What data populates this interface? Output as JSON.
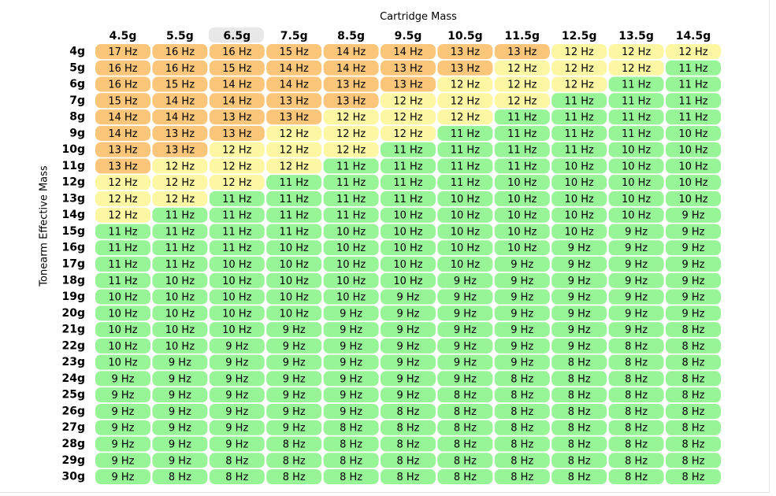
{
  "chart_data": {
    "type": "heatmap",
    "title": "Cartridge Mass",
    "xlabel": "Cartridge Mass",
    "ylabel": "Tonearm Effective Mass",
    "highlighted_column": "6.5g",
    "x": [
      "4.5g",
      "5.5g",
      "6.5g",
      "7.5g",
      "8.5g",
      "9.5g",
      "10.5g",
      "11.5g",
      "12.5g",
      "13.5g",
      "14.5g"
    ],
    "y": [
      "4g",
      "5g",
      "6g",
      "7g",
      "8g",
      "9g",
      "10g",
      "11g",
      "12g",
      "13g",
      "14g",
      "15g",
      "16g",
      "17g",
      "18g",
      "19g",
      "20g",
      "21g",
      "22g",
      "23g",
      "24g",
      "25g",
      "26g",
      "27g",
      "28g",
      "29g",
      "30g"
    ],
    "unit": "Hz",
    "values": [
      [
        17,
        16,
        16,
        15,
        14,
        14,
        13,
        13,
        12,
        12,
        12
      ],
      [
        16,
        16,
        15,
        14,
        14,
        13,
        13,
        12,
        12,
        12,
        11
      ],
      [
        16,
        15,
        14,
        14,
        13,
        13,
        12,
        12,
        12,
        11,
        11
      ],
      [
        15,
        14,
        14,
        13,
        13,
        12,
        12,
        12,
        11,
        11,
        11
      ],
      [
        14,
        14,
        13,
        13,
        12,
        12,
        12,
        11,
        11,
        11,
        11
      ],
      [
        14,
        13,
        13,
        12,
        12,
        12,
        11,
        11,
        11,
        11,
        10
      ],
      [
        13,
        13,
        12,
        12,
        12,
        11,
        11,
        11,
        11,
        10,
        10
      ],
      [
        13,
        12,
        12,
        12,
        11,
        11,
        11,
        11,
        10,
        10,
        10
      ],
      [
        12,
        12,
        12,
        11,
        11,
        11,
        11,
        10,
        10,
        10,
        10
      ],
      [
        12,
        12,
        11,
        11,
        11,
        11,
        10,
        10,
        10,
        10,
        10
      ],
      [
        12,
        11,
        11,
        11,
        11,
        10,
        10,
        10,
        10,
        10,
        9
      ],
      [
        11,
        11,
        11,
        11,
        10,
        10,
        10,
        10,
        10,
        9,
        9
      ],
      [
        11,
        11,
        11,
        10,
        10,
        10,
        10,
        10,
        9,
        9,
        9
      ],
      [
        11,
        11,
        10,
        10,
        10,
        10,
        10,
        9,
        9,
        9,
        9
      ],
      [
        11,
        10,
        10,
        10,
        10,
        10,
        9,
        9,
        9,
        9,
        9
      ],
      [
        10,
        10,
        10,
        10,
        10,
        9,
        9,
        9,
        9,
        9,
        9
      ],
      [
        10,
        10,
        10,
        10,
        9,
        9,
        9,
        9,
        9,
        9,
        9
      ],
      [
        10,
        10,
        10,
        9,
        9,
        9,
        9,
        9,
        9,
        9,
        8
      ],
      [
        10,
        10,
        9,
        9,
        9,
        9,
        9,
        9,
        9,
        8,
        8
      ],
      [
        10,
        9,
        9,
        9,
        9,
        9,
        9,
        9,
        8,
        8,
        8
      ],
      [
        9,
        9,
        9,
        9,
        9,
        9,
        9,
        8,
        8,
        8,
        8
      ],
      [
        9,
        9,
        9,
        9,
        9,
        9,
        8,
        8,
        8,
        8,
        8
      ],
      [
        9,
        9,
        9,
        9,
        9,
        8,
        8,
        8,
        8,
        8,
        8
      ],
      [
        9,
        9,
        9,
        9,
        8,
        8,
        8,
        8,
        8,
        8,
        8
      ],
      [
        9,
        9,
        9,
        8,
        8,
        8,
        8,
        8,
        8,
        8,
        8
      ],
      [
        9,
        9,
        8,
        8,
        8,
        8,
        8,
        8,
        8,
        8,
        8
      ],
      [
        9,
        8,
        8,
        8,
        8,
        8,
        8,
        8,
        8,
        8,
        8
      ]
    ],
    "colors": {
      "high": "#fbc57a",
      "mid": "#fdf6a3",
      "ideal": "#97f497",
      "highlight": "#e8e8e8"
    },
    "thresholds": {
      "high_min": 13,
      "mid_min": 12
    }
  }
}
